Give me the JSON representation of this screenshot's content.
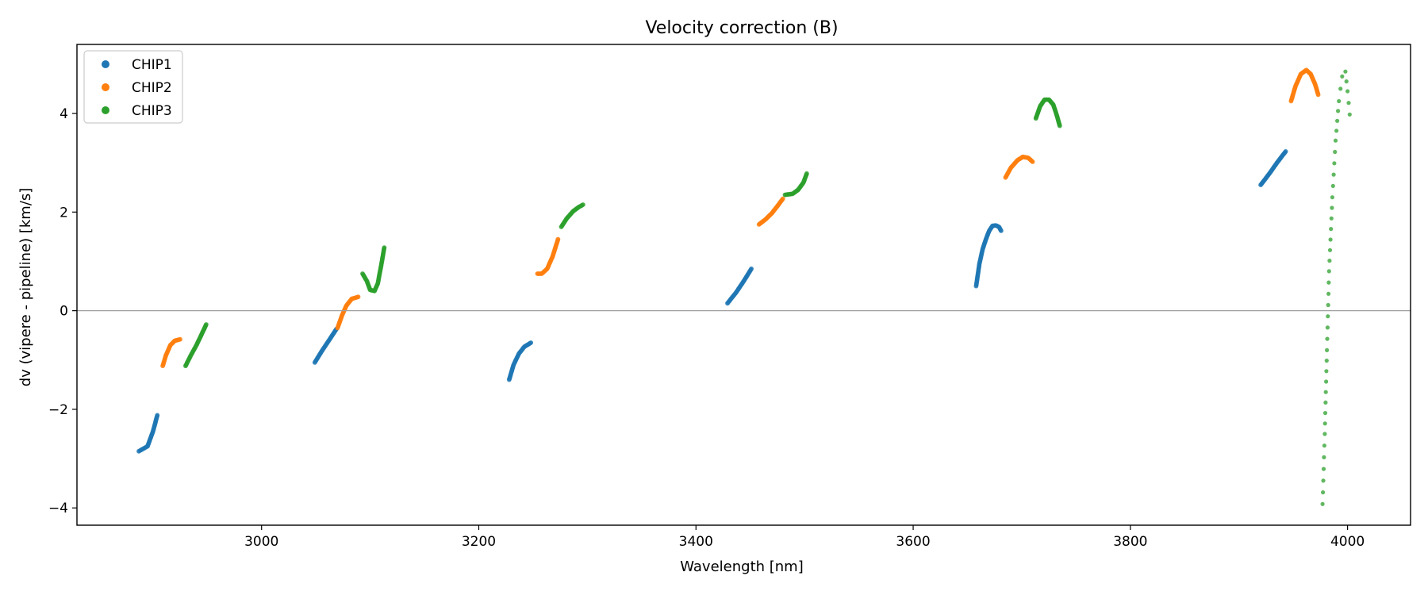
{
  "chart_data": {
    "type": "scatter",
    "title": "Velocity correction (B)",
    "xlabel": "Wavelength [nm]",
    "ylabel": "dv (vipere - pipeline) [km/s]",
    "xlim": [
      2830,
      4058
    ],
    "ylim": [
      -4.35,
      5.4
    ],
    "xticks": [
      3000,
      3200,
      3400,
      3600,
      3800,
      4000
    ],
    "yticks": [
      -4,
      -2,
      0,
      2,
      4
    ],
    "hline": 0,
    "legend_position": "upper left",
    "series": [
      {
        "name": "CHIP1",
        "color": "#1f77b4",
        "segments": [
          {
            "x": [
              2887,
              2895,
              2900,
              2904
            ],
            "y": [
              -2.85,
              -2.75,
              -2.45,
              -2.12
            ]
          },
          {
            "x": [
              3049,
              3056,
              3063,
              3069
            ],
            "y": [
              -1.05,
              -0.8,
              -0.57,
              -0.37
            ]
          },
          {
            "x": [
              3228,
              3232,
              3237,
              3242,
              3248
            ],
            "y": [
              -1.4,
              -1.1,
              -0.87,
              -0.73,
              -0.65
            ]
          },
          {
            "x": [
              3429,
              3437,
              3444,
              3451
            ],
            "y": [
              0.15,
              0.37,
              0.6,
              0.85
            ]
          },
          {
            "x": [
              3658,
              3661,
              3664,
              3667,
              3670,
              3673,
              3676,
              3679,
              3681
            ],
            "y": [
              0.5,
              0.95,
              1.25,
              1.45,
              1.62,
              1.72,
              1.73,
              1.7,
              1.62
            ]
          },
          {
            "x": [
              3920,
              3928,
              3935,
              3943
            ],
            "y": [
              2.55,
              2.78,
              3.0,
              3.23
            ]
          }
        ]
      },
      {
        "name": "CHIP2",
        "color": "#ff7f0e",
        "segments": [
          {
            "x": [
              2909,
              2912,
              2916,
              2920,
              2925
            ],
            "y": [
              -1.12,
              -0.9,
              -0.7,
              -0.61,
              -0.58
            ]
          },
          {
            "x": [
              3070,
              3074,
              3078,
              3083,
              3089
            ],
            "y": [
              -0.35,
              -0.1,
              0.1,
              0.24,
              0.28
            ]
          },
          {
            "x": [
              3254,
              3258,
              3263,
              3268,
              3273
            ],
            "y": [
              0.75,
              0.75,
              0.85,
              1.1,
              1.45
            ]
          },
          {
            "x": [
              3458,
              3464,
              3470,
              3476,
              3480
            ],
            "y": [
              1.75,
              1.85,
              1.98,
              2.15,
              2.27
            ]
          },
          {
            "x": [
              3685,
              3690,
              3696,
              3701,
              3706,
              3710
            ],
            "y": [
              2.7,
              2.9,
              3.05,
              3.12,
              3.1,
              3.02
            ]
          },
          {
            "x": [
              3948,
              3952,
              3957,
              3962,
              3966,
              3970,
              3973
            ],
            "y": [
              4.25,
              4.55,
              4.8,
              4.88,
              4.8,
              4.6,
              4.38
            ]
          }
        ]
      },
      {
        "name": "CHIP3",
        "color": "#2ca02c",
        "segments": [
          {
            "x": [
              2930,
              2935,
              2940,
              2945,
              2949
            ],
            "y": [
              -1.12,
              -0.9,
              -0.7,
              -0.47,
              -0.28
            ]
          },
          {
            "x": [
              3093,
              3097,
              3100,
              3104,
              3107,
              3110,
              3113
            ],
            "y": [
              0.75,
              0.6,
              0.42,
              0.4,
              0.55,
              0.9,
              1.28
            ]
          },
          {
            "x": [
              3276,
              3281,
              3287,
              3292,
              3296
            ],
            "y": [
              1.7,
              1.87,
              2.02,
              2.1,
              2.15
            ]
          },
          {
            "x": [
              3482,
              3489,
              3494,
              3499,
              3502
            ],
            "y": [
              2.35,
              2.37,
              2.45,
              2.6,
              2.78
            ]
          },
          {
            "x": [
              3713,
              3717,
              3721,
              3725,
              3729,
              3732,
              3735
            ],
            "y": [
              3.9,
              4.15,
              4.28,
              4.28,
              4.18,
              3.98,
              3.75
            ]
          },
          {
            "x": [
              3977,
              3979,
              3981,
              3983,
              3986,
              3989,
              3992,
              3995,
              3998,
              4000,
              4002
            ],
            "y": [
              -3.92,
              -2.5,
              -0.8,
              0.8,
              2.3,
              3.45,
              4.25,
              4.75,
              4.85,
              4.45,
              3.98
            ]
          }
        ]
      }
    ]
  }
}
